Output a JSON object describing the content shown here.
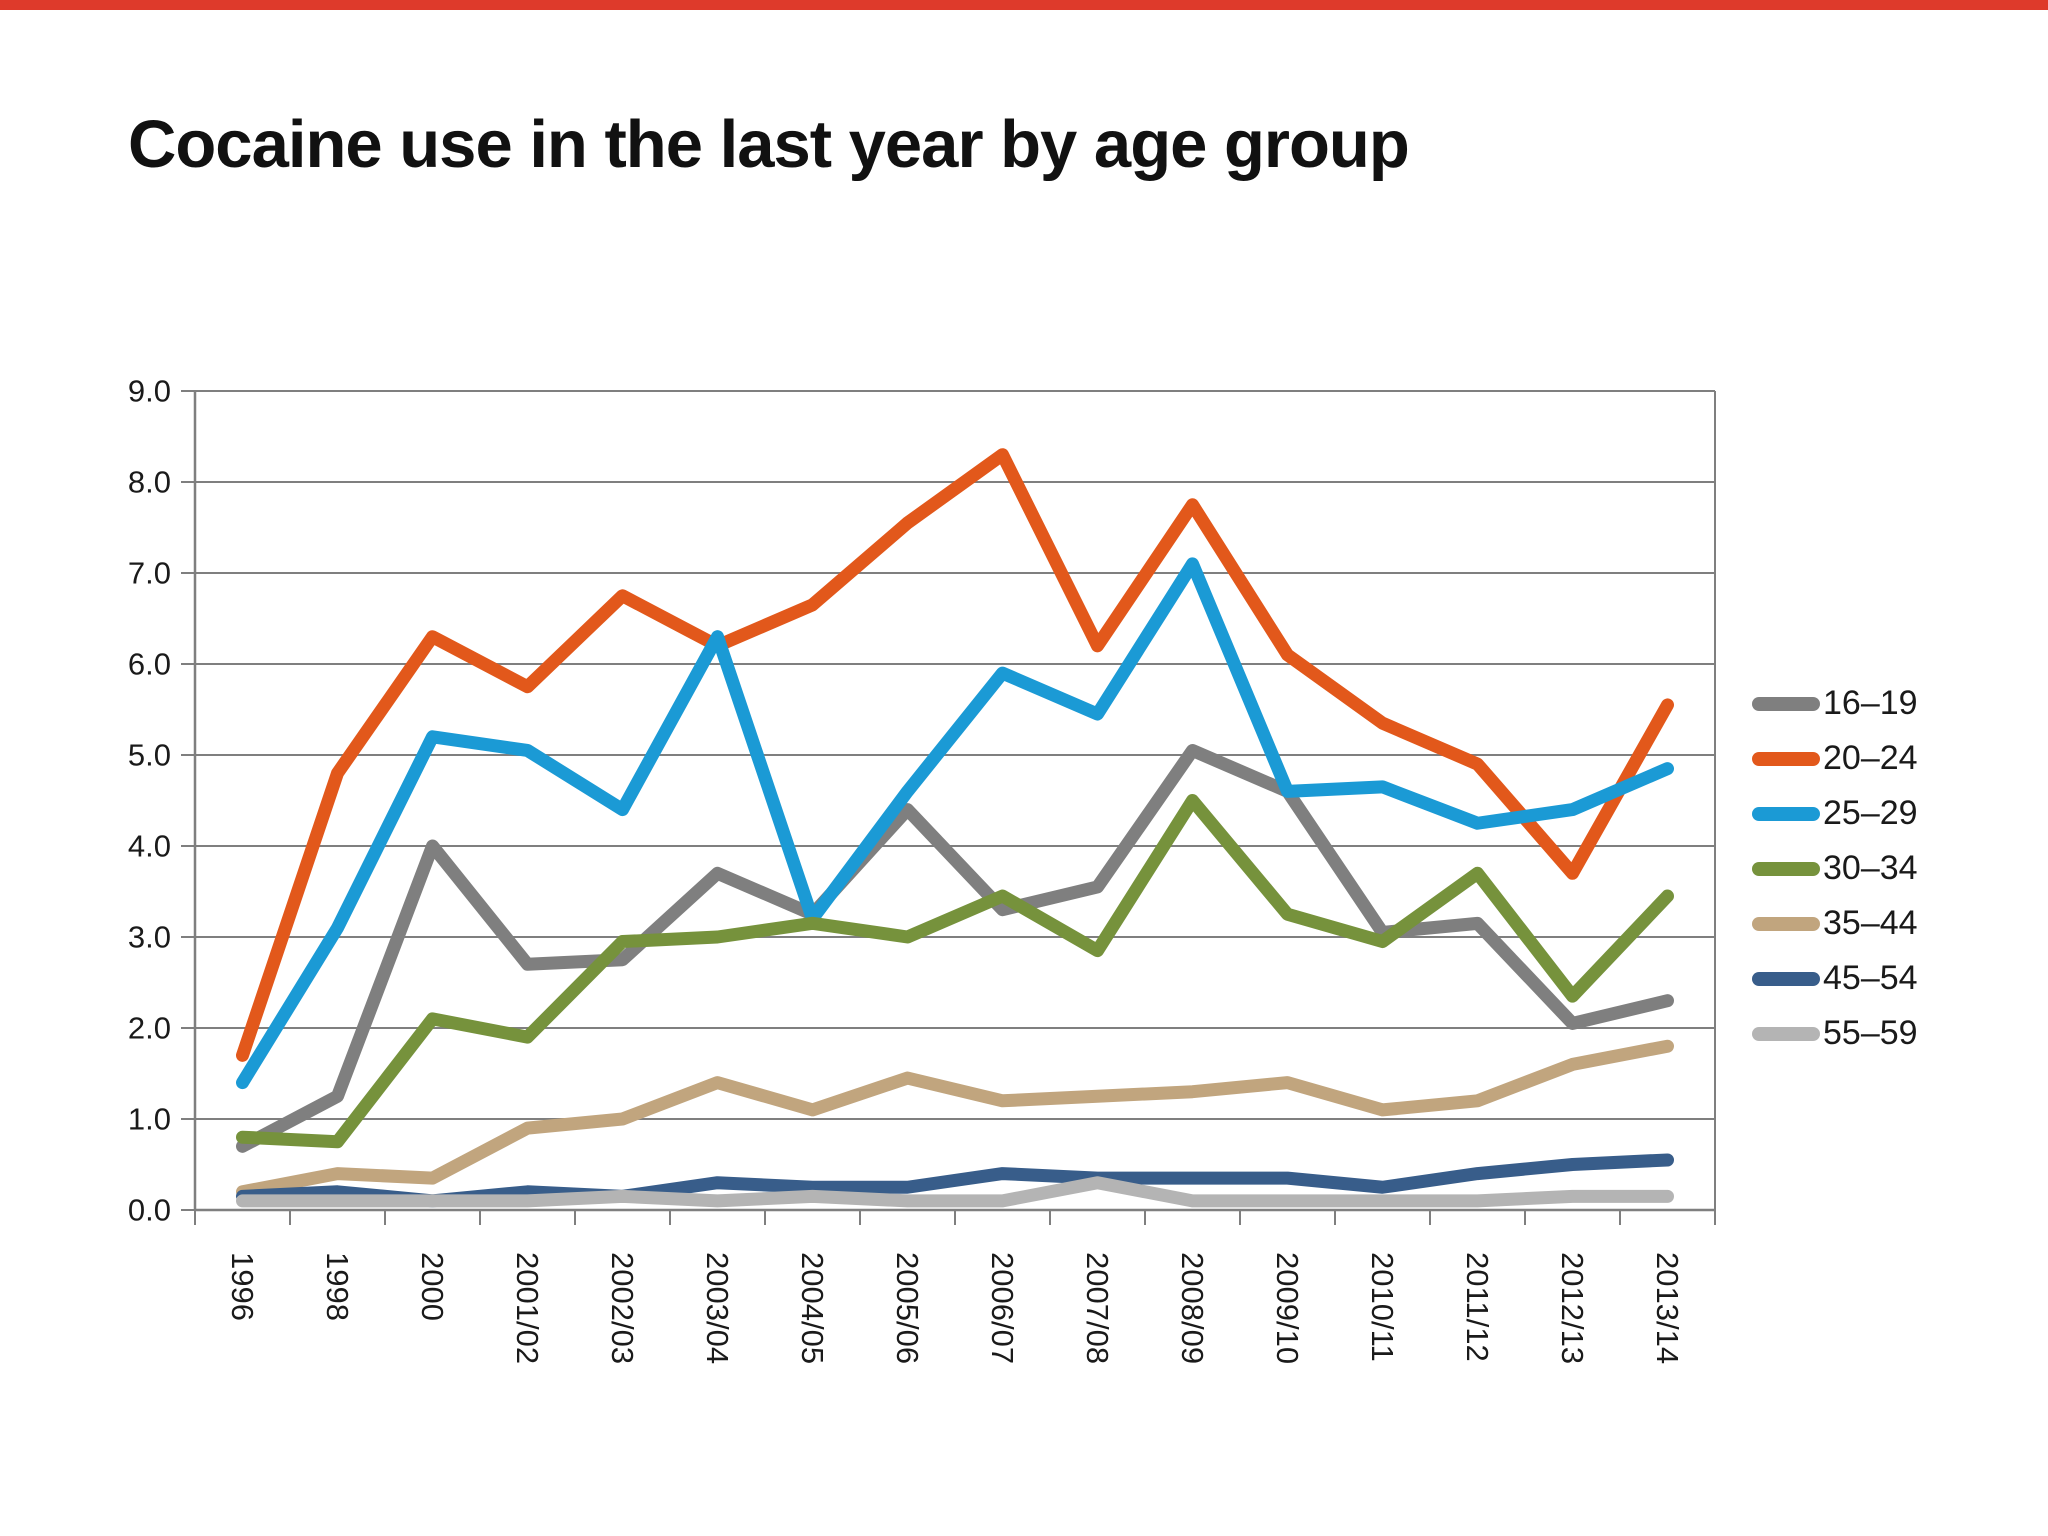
{
  "title": "Cocaine use in the last year by age group",
  "top_bar_color": "#de3a2b",
  "chart_data": {
    "type": "line",
    "title": "Cocaine use in the last year by age group",
    "xlabel": "",
    "ylabel": "",
    "ylim": [
      0,
      9
    ],
    "grid": true,
    "legend_position": "right",
    "y_tick_labels": [
      "0.0",
      "1.0",
      "2.0",
      "3.0",
      "4.0",
      "5.0",
      "6.0",
      "7.0",
      "8.0",
      "9.0"
    ],
    "categories": [
      "1996",
      "1998",
      "2000",
      "2001/02",
      "2002/03",
      "2003/04",
      "2004/05",
      "2005/06",
      "2006/07",
      "2007/08",
      "2008/09",
      "2009/10",
      "2010/11",
      "2011/12",
      "2012/13",
      "2013/14"
    ],
    "series": [
      {
        "name": "16–19",
        "color": "#7f7f7f",
        "values": [
          0.7,
          1.25,
          4.0,
          2.7,
          2.75,
          3.7,
          3.25,
          4.4,
          3.3,
          3.55,
          5.05,
          4.6,
          3.05,
          3.15,
          2.05,
          2.3
        ]
      },
      {
        "name": "20–24",
        "color": "#e2581b",
        "values": [
          1.7,
          4.8,
          6.3,
          5.75,
          6.75,
          6.2,
          6.65,
          7.55,
          8.3,
          6.2,
          7.75,
          6.1,
          5.35,
          4.9,
          3.7,
          5.55
        ]
      },
      {
        "name": "25–29",
        "color": "#1b9ad5",
        "values": [
          1.4,
          3.1,
          5.2,
          5.05,
          4.4,
          6.3,
          3.2,
          4.6,
          5.9,
          5.45,
          7.1,
          4.6,
          4.65,
          4.25,
          4.4,
          4.85
        ]
      },
      {
        "name": "30–34",
        "color": "#76923c",
        "values": [
          0.8,
          0.75,
          2.1,
          1.9,
          2.95,
          3.0,
          3.15,
          3.0,
          3.45,
          2.85,
          4.5,
          3.25,
          2.95,
          3.7,
          2.35,
          3.45
        ]
      },
      {
        "name": "35–44",
        "color": "#c1a57e",
        "values": [
          0.2,
          0.4,
          0.35,
          0.9,
          1.0,
          1.4,
          1.1,
          1.45,
          1.2,
          1.25,
          1.3,
          1.4,
          1.1,
          1.2,
          1.6,
          1.8
        ]
      },
      {
        "name": "45–54",
        "color": "#385d8a",
        "values": [
          0.15,
          0.2,
          0.1,
          0.2,
          0.15,
          0.3,
          0.25,
          0.25,
          0.4,
          0.35,
          0.35,
          0.35,
          0.25,
          0.4,
          0.5,
          0.55
        ]
      },
      {
        "name": "55–59",
        "color": "#b4b4b4",
        "values": [
          0.1,
          0.1,
          0.1,
          0.1,
          0.15,
          0.1,
          0.15,
          0.1,
          0.1,
          0.3,
          0.1,
          0.1,
          0.1,
          0.1,
          0.15,
          0.15
        ]
      }
    ]
  }
}
